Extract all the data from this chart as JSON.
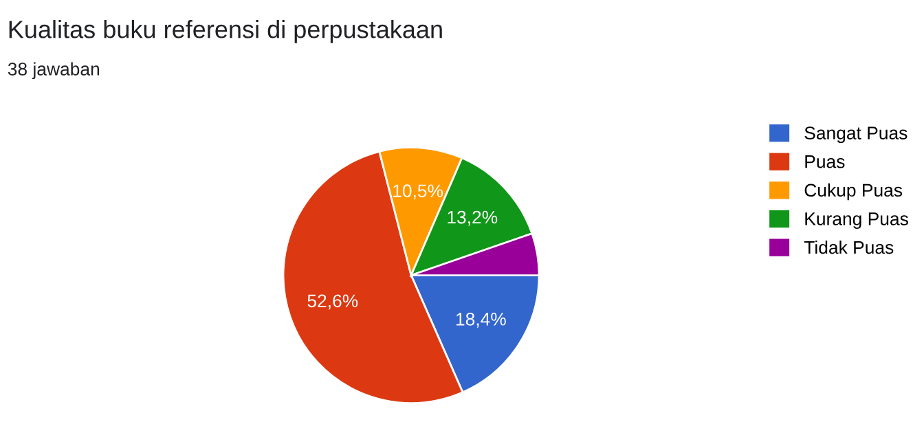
{
  "chart_data": {
    "type": "pie",
    "title": "Kualitas buku referensi di perpustakaan",
    "subtitle": "38 jawaban",
    "categories": [
      "Sangat Puas",
      "Puas",
      "Cukup Puas",
      "Kurang Puas",
      "Tidak Puas"
    ],
    "values": [
      18.4,
      52.6,
      10.5,
      13.2,
      5.3
    ],
    "colors": [
      "#3366cc",
      "#dc3912",
      "#ff9900",
      "#109618",
      "#990099"
    ],
    "value_labels": [
      "18,4%",
      "52,6%",
      "10,5%",
      "13,2%",
      null
    ],
    "legend": "right"
  }
}
